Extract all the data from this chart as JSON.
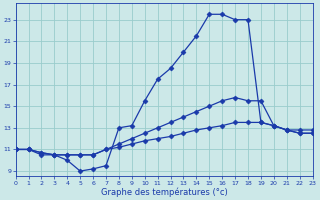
{
  "title": "Graphe des températures (°c)",
  "bg_color": "#cce8e8",
  "grid_color": "#99cccc",
  "line_color": "#1a3aaa",
  "line1_x": [
    0,
    1,
    2,
    3,
    4,
    5,
    6,
    7,
    8,
    9,
    10,
    11,
    12,
    13,
    14,
    15,
    16,
    17,
    18,
    19,
    20,
    21,
    22,
    23
  ],
  "line1_y": [
    11,
    11,
    10.5,
    10.5,
    10.0,
    9.0,
    9.2,
    9.5,
    13.0,
    13.2,
    15.5,
    17.5,
    18.5,
    20.0,
    21.5,
    23.5,
    23.5,
    23.0,
    23.0,
    13.5,
    13.2,
    12.8,
    12.8,
    12.8
  ],
  "line2_x": [
    0,
    1,
    2,
    3,
    4,
    5,
    6,
    7,
    8,
    9,
    10,
    11,
    12,
    13,
    14,
    15,
    16,
    17,
    18,
    19,
    20,
    21,
    22,
    23
  ],
  "line2_y": [
    11,
    11,
    10.7,
    10.5,
    10.5,
    10.5,
    10.5,
    11.0,
    11.5,
    12.0,
    12.5,
    13.0,
    13.5,
    14.0,
    14.5,
    15.0,
    15.5,
    15.8,
    15.5,
    15.5,
    13.2,
    12.8,
    12.5,
    12.5
  ],
  "line3_x": [
    0,
    1,
    2,
    3,
    4,
    5,
    6,
    7,
    8,
    9,
    10,
    11,
    12,
    13,
    14,
    15,
    16,
    17,
    18,
    19,
    20,
    21,
    22,
    23
  ],
  "line3_y": [
    11,
    11,
    10.7,
    10.5,
    10.5,
    10.5,
    10.5,
    11.0,
    11.2,
    11.5,
    11.8,
    12.0,
    12.2,
    12.5,
    12.8,
    13.0,
    13.2,
    13.5,
    13.5,
    13.5,
    13.2,
    12.8,
    12.5,
    12.5
  ],
  "xlim": [
    0,
    23
  ],
  "ylim": [
    8.5,
    24.5
  ],
  "xticks": [
    0,
    1,
    2,
    3,
    4,
    5,
    6,
    7,
    8,
    9,
    10,
    11,
    12,
    13,
    14,
    15,
    16,
    17,
    18,
    19,
    20,
    21,
    22,
    23
  ],
  "yticks": [
    9,
    11,
    13,
    15,
    17,
    19,
    21,
    23
  ],
  "markersize": 2.5,
  "linewidth": 0.9,
  "tick_fontsize": 4.5,
  "label_fontsize": 6.0
}
